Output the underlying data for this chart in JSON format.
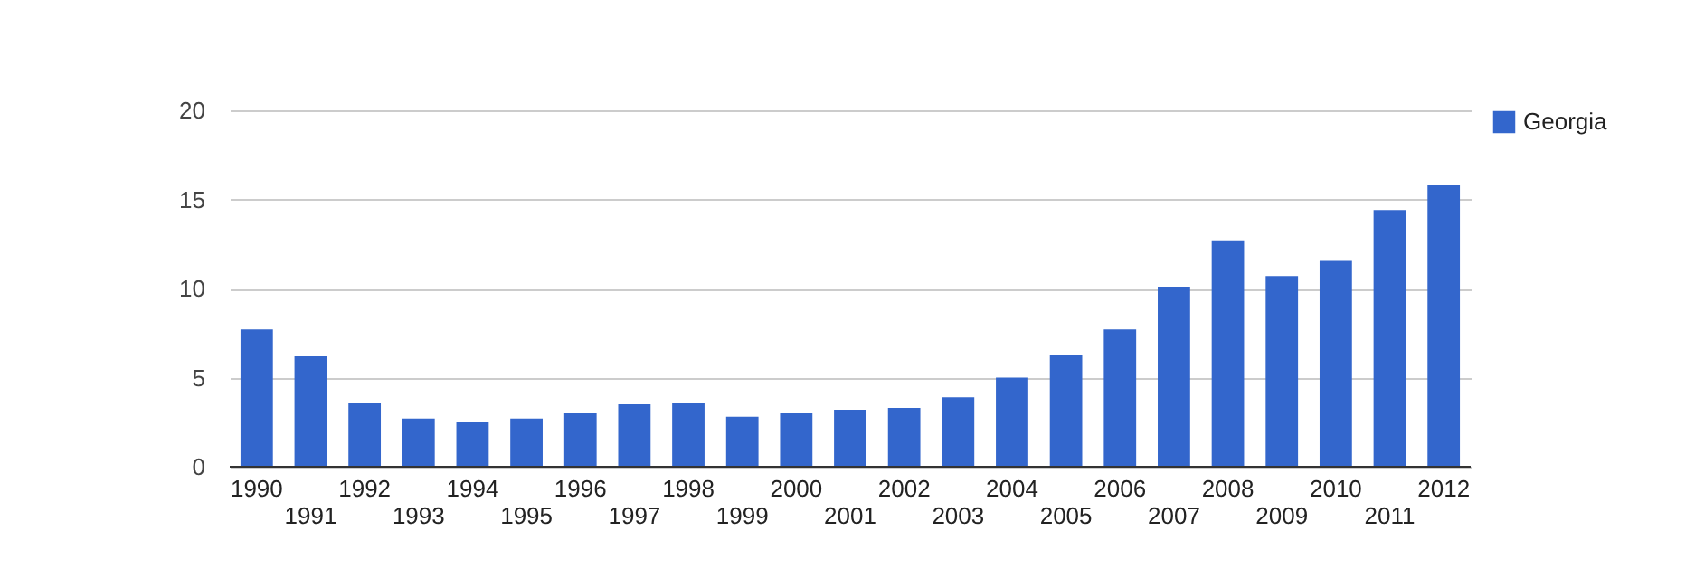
{
  "chart_data": {
    "type": "bar",
    "categories": [
      "1990",
      "1991",
      "1992",
      "1993",
      "1994",
      "1995",
      "1996",
      "1997",
      "1998",
      "1999",
      "2000",
      "2001",
      "2002",
      "2003",
      "2004",
      "2005",
      "2006",
      "2007",
      "2008",
      "2009",
      "2010",
      "2011",
      "2012"
    ],
    "series": [
      {
        "name": "Georgia",
        "color": "#3366cc",
        "values": [
          7.7,
          6.2,
          3.6,
          2.7,
          2.5,
          2.7,
          3.0,
          3.5,
          3.6,
          2.8,
          3.0,
          3.2,
          3.3,
          3.9,
          5.0,
          6.3,
          7.7,
          10.1,
          12.7,
          10.7,
          11.6,
          14.4,
          15.8
        ]
      }
    ],
    "ylim": [
      0,
      20
    ],
    "yticks": [
      0,
      5,
      10,
      15,
      20
    ],
    "grid": true,
    "legend": "top right"
  }
}
